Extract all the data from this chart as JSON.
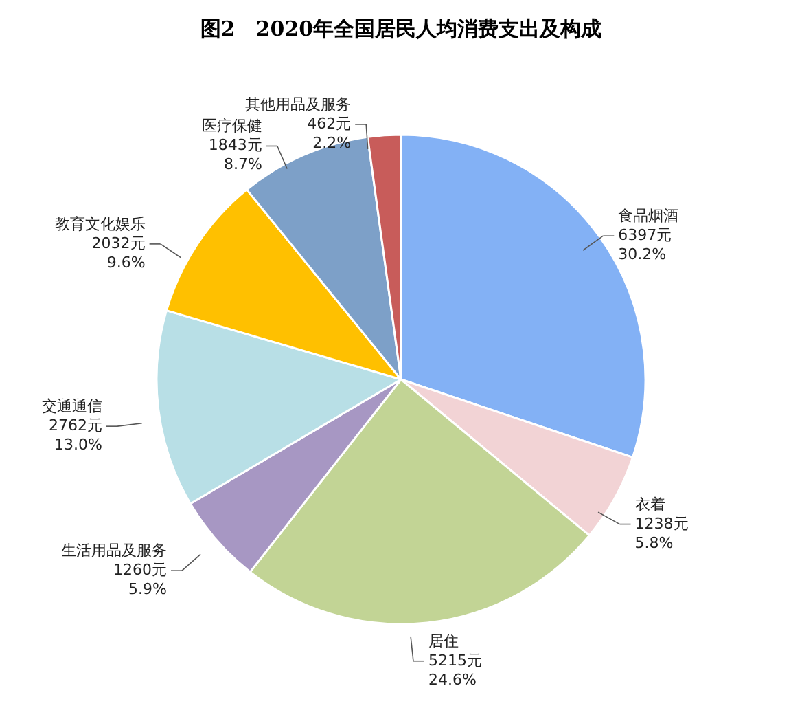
{
  "chart_data": {
    "type": "pie",
    "title": "图2　2020年全国居民人均消费支出及构成",
    "categories": [
      "食品烟酒",
      "衣着",
      "居住",
      "生活用品及服务",
      "交通通信",
      "教育文化娱乐",
      "医疗保健",
      "其他用品及服务"
    ],
    "values": [
      6397,
      1238,
      5215,
      1260,
      2762,
      2032,
      1843,
      462
    ],
    "value_labels": [
      "6397元\n30.2%",
      "1238元\n5.8%",
      "5215元\n24.6%",
      "1260元\n5.9%",
      "2762元\n13.0%",
      "2032元\n9.6%",
      "1843元\n8.7%",
      "462元\n2.2%"
    ],
    "colors": [
      "#83b1f5",
      "#f2d3d5",
      "#c2d495",
      "#a797c3",
      "#b8dfe6",
      "#ffc000",
      "#7da0c8",
      "#c85c5a"
    ],
    "legend": false
  }
}
